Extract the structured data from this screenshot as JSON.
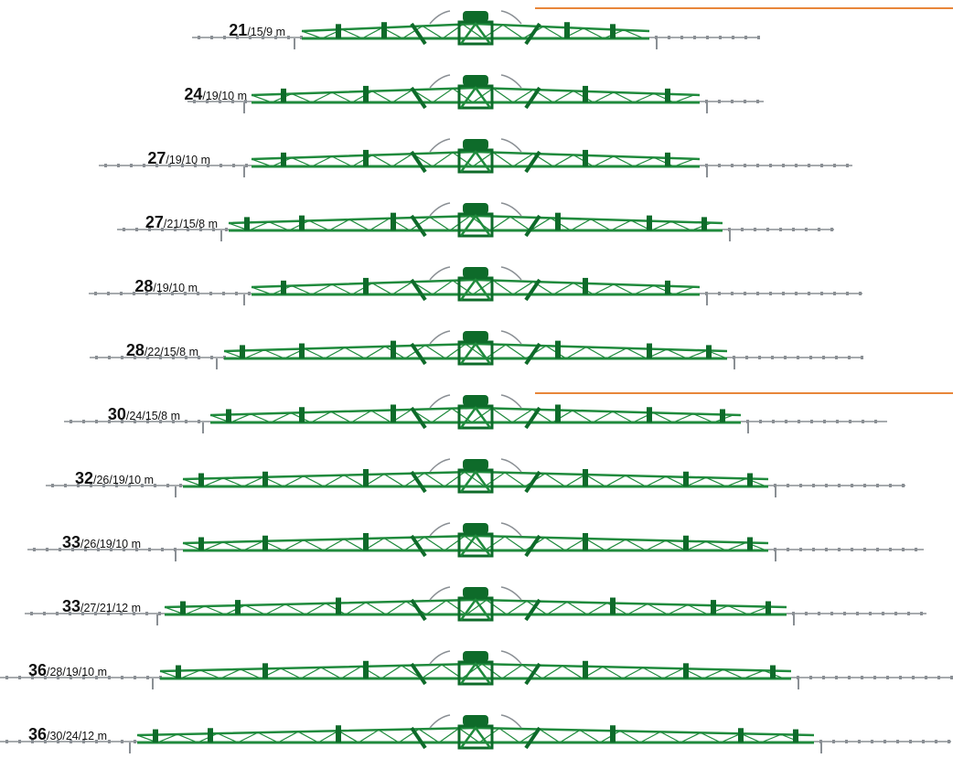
{
  "colors": {
    "accent_line": "#e8863a",
    "boom_green": "#1f8a3c",
    "boom_dark": "#0e6b2a",
    "extension_grey": "#8a8f94"
  },
  "booms": [
    {
      "main": "21",
      "rest": "/15/9 m"
    },
    {
      "main": "24",
      "rest": "/19/10 m"
    },
    {
      "main": "27",
      "rest": "/19/10 m"
    },
    {
      "main": "27",
      "rest": "/21/15/8 m"
    },
    {
      "main": "28",
      "rest": "/19/10 m"
    },
    {
      "main": "28",
      "rest": "/22/15/8 m"
    },
    {
      "main": "30",
      "rest": "/24/15/8 m"
    },
    {
      "main": "32",
      "rest": "/26/19/10 m"
    },
    {
      "main": "33",
      "rest": "/26/19/10 m"
    },
    {
      "main": "33",
      "rest": "/27/21/12 m"
    },
    {
      "main": "36",
      "rest": "/28/19/10 m"
    },
    {
      "main": "36",
      "rest": "/30/24/12 m"
    }
  ]
}
